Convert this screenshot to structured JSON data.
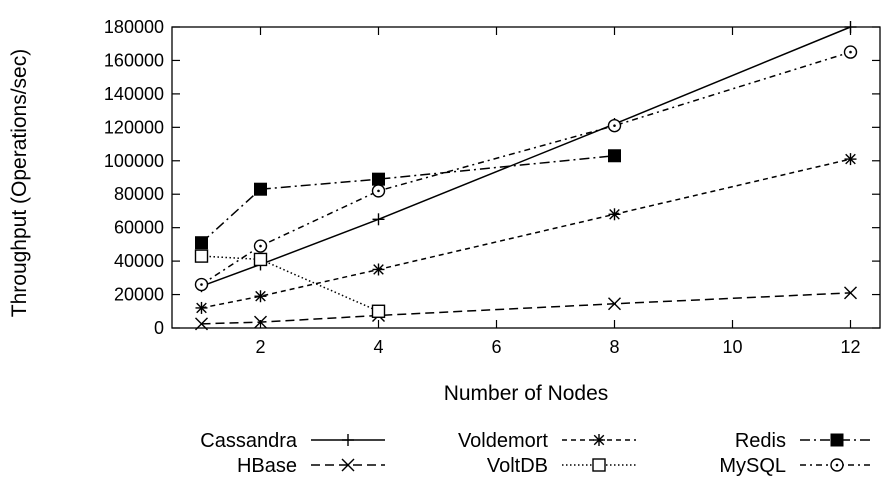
{
  "chart_data": {
    "type": "line",
    "title": "",
    "xlabel": "Number of Nodes",
    "ylabel": "Throughput (Operations/sec)",
    "xlim": [
      0.5,
      12.5
    ],
    "ylim": [
      0,
      180000
    ],
    "xticks": [
      2,
      4,
      6,
      8,
      10,
      12
    ],
    "yticks": [
      0,
      20000,
      40000,
      60000,
      80000,
      100000,
      120000,
      140000,
      160000,
      180000
    ],
    "grid": false,
    "legend_position": "bottom",
    "series": [
      {
        "name": "Cassandra",
        "marker": "plus",
        "dash": "solid",
        "x": [
          1,
          2,
          4,
          8,
          12
        ],
        "y": [
          25000,
          38000,
          65000,
          122000,
          180000
        ]
      },
      {
        "name": "HBase",
        "marker": "x",
        "dash": "dashed",
        "x": [
          1,
          2,
          4,
          8,
          12
        ],
        "y": [
          2500,
          3500,
          7500,
          14500,
          21000
        ]
      },
      {
        "name": "Voldemort",
        "marker": "asterisk",
        "dash": "short-dash",
        "x": [
          1,
          2,
          4,
          8,
          12
        ],
        "y": [
          12000,
          19000,
          35000,
          68000,
          101000
        ]
      },
      {
        "name": "VoltDB",
        "marker": "square-open",
        "dash": "dotted",
        "x": [
          1,
          2,
          4
        ],
        "y": [
          43000,
          41000,
          10000
        ]
      },
      {
        "name": "Redis",
        "marker": "square-filled",
        "dash": "dash-dot",
        "x": [
          1,
          2,
          4,
          8
        ],
        "y": [
          51000,
          83000,
          89000,
          103000
        ]
      },
      {
        "name": "MySQL",
        "marker": "circle-dot",
        "dash": "dash-dot-sparse",
        "x": [
          1,
          2,
          4,
          8,
          12
        ],
        "y": [
          26000,
          49000,
          82000,
          121000,
          165000
        ]
      }
    ]
  }
}
